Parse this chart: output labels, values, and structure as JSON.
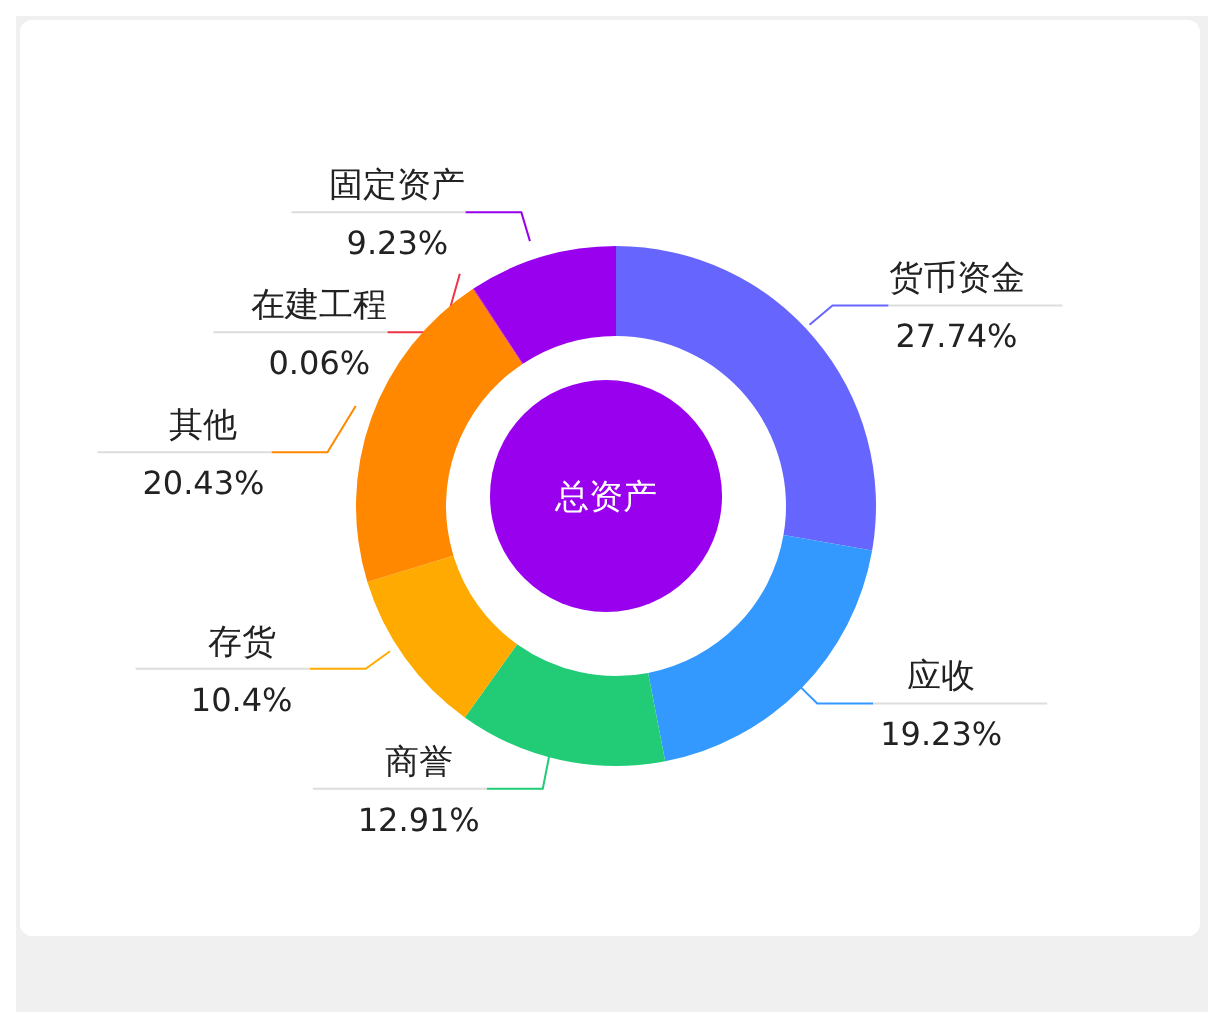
{
  "chart_data": {
    "type": "donut",
    "categories": [
      "货币资金",
      "应收",
      "商誉",
      "存货",
      "其他",
      "在建工程",
      "固定资产"
    ],
    "values": [
      27.74,
      19.23,
      12.91,
      10.4,
      20.43,
      0.06,
      9.23
    ],
    "colors": [
      "#6666ff",
      "#3399ff",
      "#22cc77",
      "#ffaa00",
      "#ff8800",
      "#ee3344",
      "#9900ee"
    ],
    "value_labels": [
      "27.74%",
      "19.23%",
      "12.91%",
      "10.4%",
      "20.43%",
      "0.06%",
      "9.23%"
    ],
    "annotations": [
      "总资产"
    ]
  }
}
